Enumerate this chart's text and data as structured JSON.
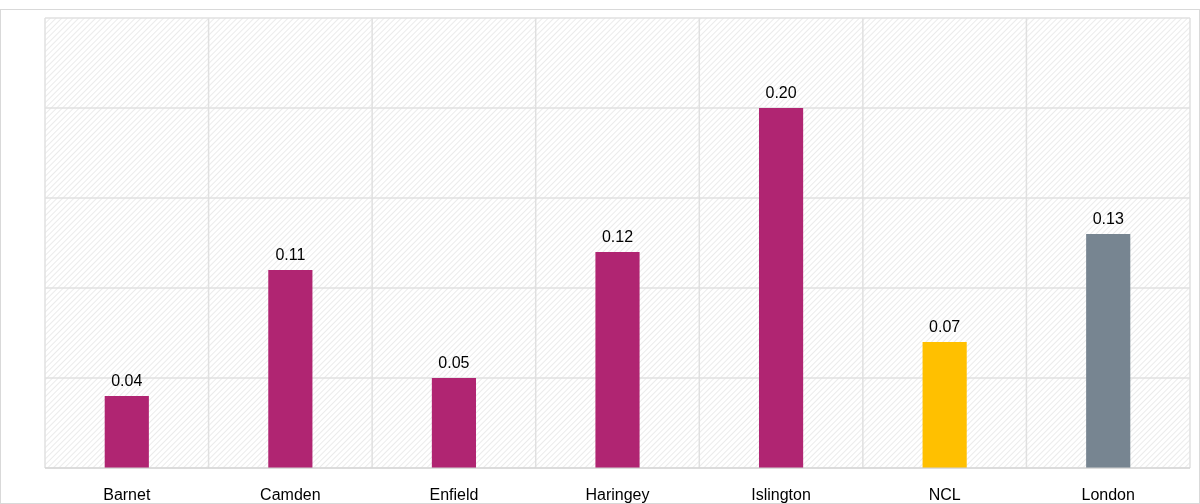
{
  "chart_data": {
    "type": "bar",
    "categories": [
      "Barnet",
      "Camden",
      "Enfield",
      "Haringey",
      "Islington",
      "NCL",
      "London"
    ],
    "values": [
      0.04,
      0.11,
      0.05,
      0.12,
      0.2,
      0.07,
      0.13
    ],
    "value_labels": [
      "0.04",
      "0.11",
      "0.05",
      "0.12",
      "0.20",
      "0.07",
      "0.13"
    ],
    "colors": [
      "#b02572",
      "#b02572",
      "#b02572",
      "#b02572",
      "#b02572",
      "#ffc000",
      "#778591"
    ],
    "ylim": [
      0,
      0.25
    ],
    "yticks": [
      {
        "value": 0,
        "label": null
      },
      {
        "value": 0.05,
        "label": null
      },
      {
        "value": 0.1,
        "label": null
      },
      {
        "value": 0.15,
        "label": null
      },
      {
        "value": 0.2,
        "label": null
      },
      {
        "value": 0.25,
        "label": null
      }
    ],
    "grid": true,
    "tick_labels": "x"
  }
}
